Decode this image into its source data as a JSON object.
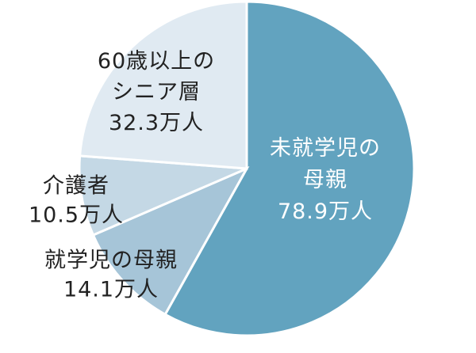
{
  "chart_data": {
    "type": "pie",
    "slices": [
      {
        "label_lines": [
          "未就学児の",
          "母親",
          "78.9万人"
        ],
        "value": 78.9,
        "color": "#62a3bf",
        "text_color": "#ffffff"
      },
      {
        "label_lines": [
          "就学児の母親",
          "14.1万人"
        ],
        "value": 14.1,
        "color": "#a6c5d8",
        "text_color": "#222222"
      },
      {
        "label_lines": [
          "介護者",
          "10.5万人"
        ],
        "value": 10.5,
        "color": "#c4d8e5",
        "text_color": "#222222"
      },
      {
        "label_lines": [
          "60歳以上の",
          "シニア層",
          "32.3万人"
        ],
        "value": 32.3,
        "color": "#e0eaf2",
        "text_color": "#222222"
      }
    ],
    "start_angle": "12 o'clock",
    "direction": "clockwise"
  }
}
